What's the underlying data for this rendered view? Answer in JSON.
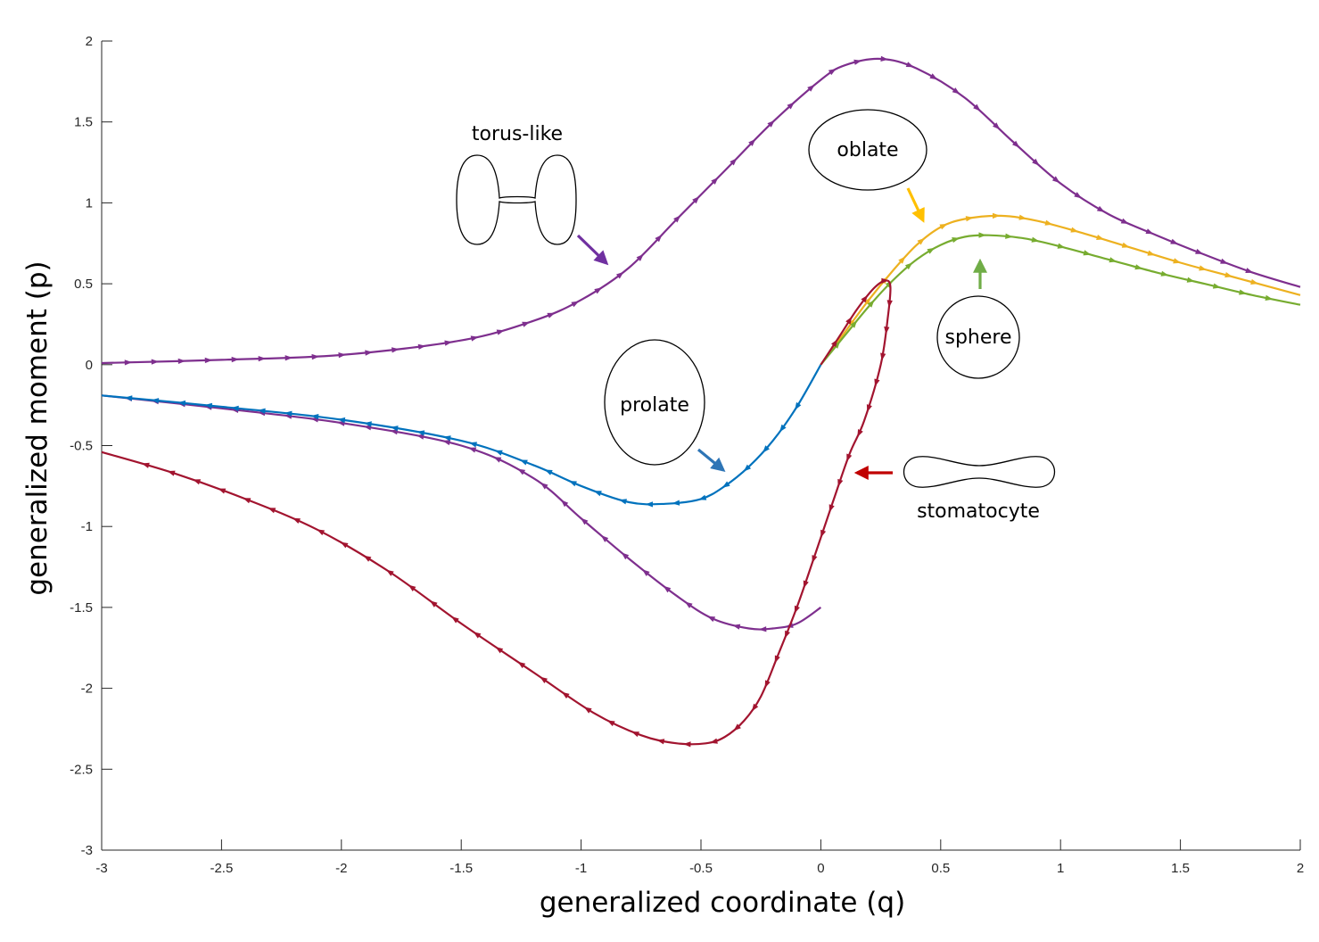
{
  "chart_data": {
    "type": "line",
    "title": "",
    "xlabel": "generalized coordinate (q)",
    "ylabel": "generalized moment (p)",
    "xlim": [
      -3,
      2
    ],
    "ylim": [
      -3,
      2
    ],
    "x_ticks": [
      -3,
      -2.5,
      -2,
      -1.5,
      -1,
      -0.5,
      0,
      0.5,
      1,
      1.5,
      2
    ],
    "x_tick_labels": [
      "-3",
      "-2.5",
      "-2",
      "-1.5",
      "-1",
      "-0.5",
      "0",
      "0.5",
      "1",
      "1.5",
      "2"
    ],
    "y_ticks": [
      -3,
      -2.5,
      -2,
      -1.5,
      -1,
      -0.5,
      0,
      0.5,
      1,
      1.5,
      2
    ],
    "y_tick_labels": [
      "-3",
      "-2.5",
      "-2",
      "-1.5",
      "-1",
      "-0.5",
      "0",
      "0.5",
      "1",
      "1.5",
      "2"
    ],
    "grid": false,
    "legend": "none",
    "series": [
      {
        "color": "#7e2f8e",
        "direction": "forward",
        "points": [
          [
            -3,
            0.01
          ],
          [
            -2.5,
            0.03
          ],
          [
            -2,
            0.06
          ],
          [
            -1.5,
            0.15
          ],
          [
            -1.2,
            0.27
          ],
          [
            -1,
            0.4
          ],
          [
            -0.8,
            0.6
          ],
          [
            -0.6,
            0.9
          ],
          [
            -0.4,
            1.2
          ],
          [
            -0.2,
            1.5
          ],
          [
            0,
            1.76
          ],
          [
            0.1,
            1.85
          ],
          [
            0.25,
            1.89
          ],
          [
            0.4,
            1.83
          ],
          [
            0.6,
            1.65
          ],
          [
            0.8,
            1.38
          ],
          [
            1.0,
            1.12
          ],
          [
            1.2,
            0.93
          ],
          [
            1.4,
            0.8
          ],
          [
            1.6,
            0.68
          ],
          [
            1.8,
            0.57
          ],
          [
            2,
            0.48
          ]
        ]
      },
      {
        "color": "#7e2f8e",
        "direction": "backward",
        "points": [
          [
            -3,
            -0.19
          ],
          [
            -2.5,
            -0.27
          ],
          [
            -2,
            -0.36
          ],
          [
            -1.5,
            -0.5
          ],
          [
            -1.2,
            -0.7
          ],
          [
            -1,
            -0.95
          ],
          [
            -0.8,
            -1.2
          ],
          [
            -0.6,
            -1.43
          ],
          [
            -0.45,
            -1.57
          ],
          [
            -0.3,
            -1.63
          ],
          [
            -0.2,
            -1.63
          ],
          [
            -0.1,
            -1.6
          ],
          [
            0,
            -1.5
          ]
        ]
      },
      {
        "color": "#0072bd",
        "direction": "backward",
        "points": [
          [
            -3,
            -0.19
          ],
          [
            -2.5,
            -0.26
          ],
          [
            -2,
            -0.34
          ],
          [
            -1.5,
            -0.47
          ],
          [
            -1.2,
            -0.62
          ],
          [
            -1,
            -0.75
          ],
          [
            -0.8,
            -0.85
          ],
          [
            -0.65,
            -0.86
          ],
          [
            -0.5,
            -0.83
          ],
          [
            -0.4,
            -0.75
          ],
          [
            -0.3,
            -0.63
          ],
          [
            -0.2,
            -0.47
          ],
          [
            -0.1,
            -0.26
          ],
          [
            0,
            0
          ]
        ]
      },
      {
        "color": "#edb120",
        "direction": "forward",
        "points": [
          [
            0,
            0
          ],
          [
            0.1,
            0.2
          ],
          [
            0.2,
            0.4
          ],
          [
            0.3,
            0.58
          ],
          [
            0.4,
            0.74
          ],
          [
            0.5,
            0.85
          ],
          [
            0.6,
            0.9
          ],
          [
            0.75,
            0.92
          ],
          [
            0.9,
            0.89
          ],
          [
            1.1,
            0.81
          ],
          [
            1.3,
            0.72
          ],
          [
            1.5,
            0.63
          ],
          [
            1.7,
            0.55
          ],
          [
            2,
            0.43
          ]
        ]
      },
      {
        "color": "#77ac30",
        "direction": "forward",
        "points": [
          [
            0,
            0
          ],
          [
            0.1,
            0.18
          ],
          [
            0.2,
            0.36
          ],
          [
            0.3,
            0.52
          ],
          [
            0.4,
            0.65
          ],
          [
            0.5,
            0.74
          ],
          [
            0.6,
            0.79
          ],
          [
            0.7,
            0.8
          ],
          [
            0.85,
            0.78
          ],
          [
            1.0,
            0.73
          ],
          [
            1.2,
            0.65
          ],
          [
            1.4,
            0.57
          ],
          [
            1.6,
            0.5
          ],
          [
            1.8,
            0.43
          ],
          [
            2,
            0.37
          ]
        ]
      },
      {
        "color": "#a2142f",
        "direction": "forward",
        "points": [
          [
            0,
            0
          ],
          [
            0.08,
            0.18
          ],
          [
            0.15,
            0.34
          ],
          [
            0.22,
            0.47
          ],
          [
            0.27,
            0.52
          ],
          [
            0.29,
            0.48
          ],
          [
            0.28,
            0.3
          ],
          [
            0.25,
            0
          ],
          [
            0.18,
            -0.35
          ],
          [
            0.12,
            -0.55
          ],
          [
            0.05,
            -0.85
          ],
          [
            -0.03,
            -1.2
          ],
          [
            -0.1,
            -1.5
          ],
          [
            -0.18,
            -1.8
          ],
          [
            -0.25,
            -2.05
          ],
          [
            -0.32,
            -2.2
          ],
          [
            -0.4,
            -2.3
          ],
          [
            -0.48,
            -2.34
          ],
          [
            -0.6,
            -2.34
          ],
          [
            -0.75,
            -2.29
          ],
          [
            -0.95,
            -2.15
          ],
          [
            -1.2,
            -1.9
          ],
          [
            -1.5,
            -1.6
          ],
          [
            -1.8,
            -1.28
          ],
          [
            -2.1,
            -1.02
          ],
          [
            -2.4,
            -0.83
          ],
          [
            -2.7,
            -0.67
          ],
          [
            -3,
            -0.54
          ]
        ]
      }
    ],
    "annotations": [
      {
        "text": "torus-like",
        "shape": "torus-like",
        "arrow_color": "#7030a0"
      },
      {
        "text": "oblate",
        "shape": "oblate",
        "arrow_color": "#ffc000"
      },
      {
        "text": "prolate",
        "shape": "prolate",
        "arrow_color": "#2e75b6"
      },
      {
        "text": "sphere",
        "shape": "sphere",
        "arrow_color": "#70ad47"
      },
      {
        "text": "stomatocyte",
        "shape": "stomatocyte",
        "arrow_color": "#c00000"
      }
    ]
  }
}
